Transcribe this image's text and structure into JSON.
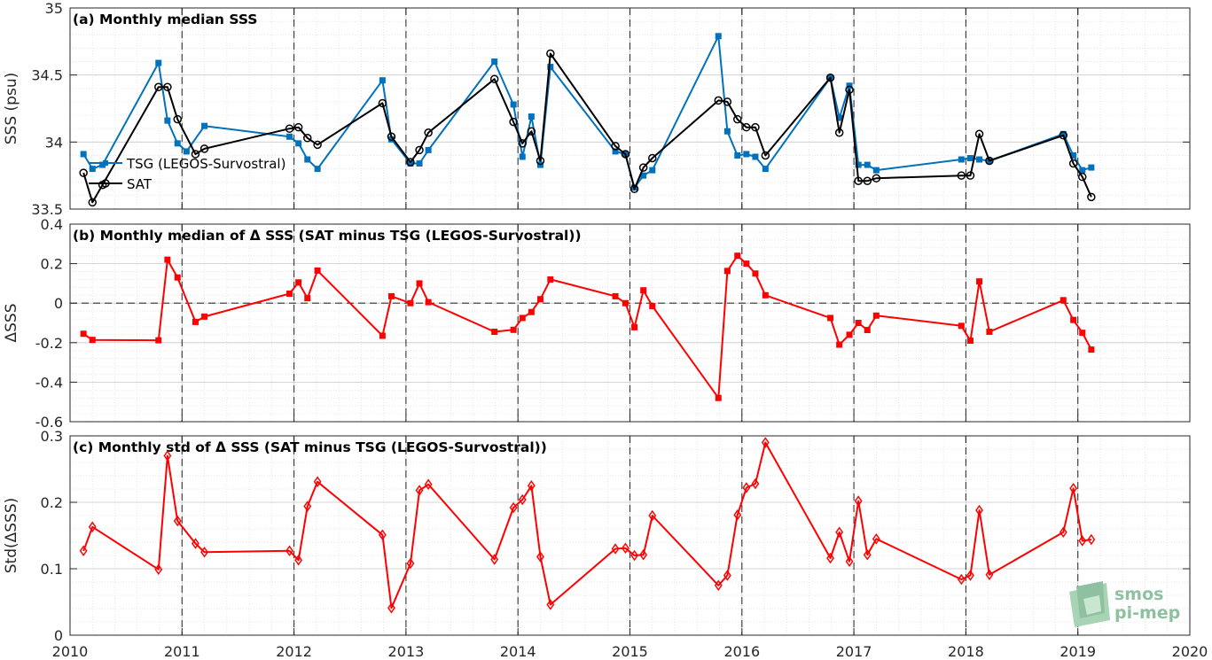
{
  "chart_data": [
    {
      "type": "line",
      "title": "(a) Monthly median SSS",
      "ylabel": "SSS (psu)",
      "xlim": [
        2010,
        2020
      ],
      "ylim": [
        33.5,
        35
      ],
      "yticks": [
        "33.5",
        "34",
        "34.5",
        "35"
      ],
      "grid": true,
      "legend": "upper-left",
      "series": [
        {
          "name": "TSG (LEGOS-Survostral)",
          "color": "#0072bd",
          "marker": "square",
          "x": [
            2010.12,
            2010.2,
            2010.29,
            2010.79,
            2010.87,
            2010.96,
            2011.04,
            2011.2,
            2011.96,
            2012.04,
            2012.12,
            2012.21,
            2012.79,
            2012.87,
            2013.04,
            2013.12,
            2013.2,
            2013.79,
            2013.96,
            2014.04,
            2014.12,
            2014.2,
            2014.29,
            2014.87,
            2014.96,
            2015.04,
            2015.12,
            2015.2,
            2015.79,
            2015.87,
            2015.96,
            2016.04,
            2016.12,
            2016.21,
            2016.79,
            2016.87,
            2016.96,
            2017.04,
            2017.12,
            2017.2,
            2017.96,
            2018.04,
            2018.12,
            2018.21,
            2018.87,
            2018.96,
            2019.04,
            2019.12
          ],
          "values": [
            33.91,
            33.8,
            33.83,
            34.59,
            34.16,
            33.99,
            33.93,
            34.12,
            34.04,
            33.99,
            33.87,
            33.8,
            34.46,
            34.02,
            33.84,
            33.84,
            33.94,
            34.6,
            34.28,
            33.89,
            34.19,
            33.83,
            34.56,
            33.93,
            33.91,
            33.66,
            33.75,
            33.79,
            34.79,
            34.08,
            33.9,
            33.91,
            33.89,
            33.8,
            34.48,
            34.18,
            34.42,
            33.83,
            33.83,
            33.79,
            33.87,
            33.88,
            33.87,
            33.86,
            34.06,
            33.9,
            33.79,
            33.81
          ]
        },
        {
          "name": "SAT",
          "color": "#000000",
          "marker": "circle",
          "x": [
            2010.12,
            2010.2,
            2010.29,
            2010.79,
            2010.87,
            2010.96,
            2011.12,
            2011.2,
            2011.96,
            2012.04,
            2012.12,
            2012.21,
            2012.79,
            2012.87,
            2013.04,
            2013.12,
            2013.2,
            2013.79,
            2013.96,
            2014.04,
            2014.12,
            2014.2,
            2014.29,
            2014.87,
            2014.96,
            2015.04,
            2015.12,
            2015.2,
            2015.79,
            2015.87,
            2015.96,
            2016.04,
            2016.12,
            2016.21,
            2016.79,
            2016.87,
            2016.96,
            2017.04,
            2017.12,
            2017.2,
            2017.96,
            2018.04,
            2018.12,
            2018.21,
            2018.87,
            2018.96,
            2019.04,
            2019.12
          ],
          "values": [
            33.77,
            33.55,
            33.68,
            34.41,
            34.41,
            34.17,
            33.91,
            33.95,
            34.1,
            34.11,
            34.03,
            33.98,
            34.29,
            34.04,
            33.85,
            33.94,
            34.07,
            34.47,
            34.15,
            33.99,
            34.08,
            33.86,
            34.66,
            33.97,
            33.91,
            33.65,
            33.81,
            33.88,
            34.31,
            34.3,
            34.17,
            34.11,
            34.11,
            33.9,
            34.48,
            34.07,
            34.39,
            33.71,
            33.71,
            33.73,
            33.75,
            33.75,
            34.06,
            33.86,
            34.05,
            33.84,
            33.74,
            33.59
          ]
        }
      ]
    },
    {
      "type": "line",
      "title": "(b) Monthly median of Δ SSS (SAT minus TSG (LEGOS-Survostral))",
      "ylabel": "ΔSSS",
      "xlim": [
        2010,
        2020
      ],
      "ylim": [
        -0.6,
        0.4
      ],
      "yticks": [
        "-0.6",
        "-0.4",
        "-0.2",
        "0",
        "0.2",
        "0.4"
      ],
      "grid": true,
      "series": [
        {
          "color": "#ff0000",
          "marker": "square",
          "x": [
            2010.12,
            2010.2,
            2010.79,
            2010.87,
            2010.96,
            2011.12,
            2011.2,
            2011.96,
            2012.04,
            2012.12,
            2012.21,
            2012.79,
            2012.87,
            2013.04,
            2013.12,
            2013.2,
            2013.79,
            2013.96,
            2014.04,
            2014.12,
            2014.2,
            2014.29,
            2014.87,
            2014.96,
            2015.04,
            2015.12,
            2015.2,
            2015.79,
            2015.87,
            2015.96,
            2016.04,
            2016.12,
            2016.21,
            2016.79,
            2016.87,
            2016.96,
            2017.04,
            2017.12,
            2017.2,
            2017.96,
            2018.04,
            2018.12,
            2018.21,
            2018.87,
            2018.96,
            2019.04,
            2019.12
          ],
          "values": [
            -0.155,
            -0.186,
            -0.188,
            0.22,
            0.13,
            -0.095,
            -0.068,
            0.048,
            0.105,
            0.025,
            0.165,
            -0.165,
            0.035,
            0.0,
            0.1,
            0.005,
            -0.145,
            -0.135,
            -0.075,
            -0.045,
            0.02,
            0.12,
            0.035,
            0.0,
            -0.122,
            0.065,
            -0.015,
            -0.48,
            0.163,
            0.24,
            0.2,
            0.15,
            0.04,
            -0.075,
            -0.21,
            -0.16,
            -0.1,
            -0.136,
            -0.063,
            -0.115,
            -0.19,
            0.11,
            -0.145,
            0.015,
            -0.085,
            -0.15,
            -0.235
          ]
        }
      ]
    },
    {
      "type": "line",
      "title": "(c) Monthly std of Δ SSS (SAT minus TSG (LEGOS-Survostral))",
      "ylabel": "Std(ΔSSS)",
      "xlabel": "",
      "xlim": [
        2010,
        2020
      ],
      "ylim": [
        0,
        0.3
      ],
      "yticks": [
        "0",
        "0.1",
        "0.2",
        "0.3"
      ],
      "grid": true,
      "series": [
        {
          "color": "#ff0000",
          "marker": "diamond",
          "x": [
            2010.12,
            2010.2,
            2010.79,
            2010.87,
            2010.96,
            2011.12,
            2011.2,
            2011.96,
            2012.04,
            2012.12,
            2012.21,
            2012.79,
            2012.87,
            2013.04,
            2013.12,
            2013.2,
            2013.79,
            2013.96,
            2014.04,
            2014.12,
            2014.2,
            2014.29,
            2014.87,
            2014.96,
            2015.04,
            2015.12,
            2015.2,
            2015.79,
            2015.87,
            2015.96,
            2016.04,
            2016.12,
            2016.21,
            2016.79,
            2016.87,
            2016.96,
            2017.04,
            2017.12,
            2017.2,
            2017.96,
            2018.04,
            2018.12,
            2018.21,
            2018.87,
            2018.96,
            2019.04,
            2019.12
          ],
          "values": [
            0.127,
            0.163,
            0.099,
            0.27,
            0.172,
            0.138,
            0.125,
            0.127,
            0.113,
            0.194,
            0.231,
            0.151,
            0.041,
            0.108,
            0.218,
            0.227,
            0.114,
            0.192,
            0.204,
            0.225,
            0.118,
            0.046,
            0.13,
            0.131,
            0.12,
            0.121,
            0.18,
            0.075,
            0.09,
            0.181,
            0.222,
            0.228,
            0.29,
            0.116,
            0.155,
            0.111,
            0.202,
            0.121,
            0.145,
            0.084,
            0.09,
            0.188,
            0.091,
            0.155,
            0.221,
            0.142,
            0.144
          ]
        }
      ]
    }
  ],
  "xticks": [
    "2010",
    "2011",
    "2012",
    "2013",
    "2014",
    "2015",
    "2016",
    "2017",
    "2018",
    "2019",
    "2020"
  ],
  "legend_items": [
    "TSG (LEGOS-Survostral)",
    "SAT"
  ],
  "logo": {
    "line1": "smos",
    "line2": "pi-mep",
    "color": "#8fc1a0"
  }
}
